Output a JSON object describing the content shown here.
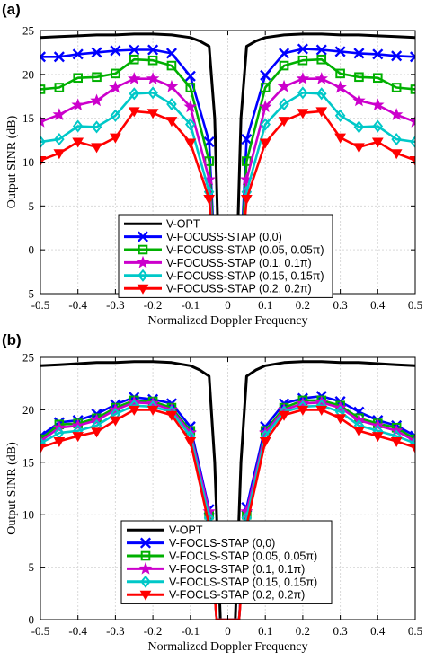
{
  "chart_data": [
    {
      "panel": "(a)",
      "type": "line",
      "xlabel": "Normalized Doppler Frequency",
      "ylabel": "Output SINR (dB)",
      "xlim": [
        -0.5,
        0.5
      ],
      "ylim": [
        -5,
        25
      ],
      "xticks": [
        "-0.5",
        "-0.4",
        "-0.3",
        "-0.2",
        "-0.1",
        "0",
        "0.1",
        "0.2",
        "0.3",
        "0.4",
        "0.5"
      ],
      "yticks": [
        "-5",
        "0",
        "5",
        "10",
        "15",
        "20",
        "25"
      ],
      "grid": true,
      "legend_position": "bottom-center",
      "series": [
        {
          "name": "V-OPT",
          "color": "#000000",
          "marker": "none",
          "x": [
            -0.5,
            -0.45,
            -0.4,
            -0.35,
            -0.3,
            -0.25,
            -0.2,
            -0.15,
            -0.1,
            -0.075,
            -0.05,
            -0.035,
            -0.025,
            -0.02,
            0.02,
            0.025,
            0.035,
            0.05,
            0.075,
            0.1,
            0.15,
            0.2,
            0.25,
            0.3,
            0.35,
            0.4,
            0.45,
            0.5
          ],
          "y": [
            24.2,
            24.3,
            24.4,
            24.5,
            24.5,
            24.6,
            24.6,
            24.5,
            24.2,
            23.8,
            23.2,
            15,
            0,
            -5,
            -5,
            0,
            15,
            23.2,
            23.8,
            24.2,
            24.5,
            24.6,
            24.6,
            24.5,
            24.5,
            24.4,
            24.3,
            24.2
          ]
        },
        {
          "name": "V-FOCUSS-STAP (0,0)",
          "color": "#0000ff",
          "marker": "x",
          "x": [
            -0.5,
            -0.45,
            -0.4,
            -0.35,
            -0.3,
            -0.25,
            -0.2,
            -0.15,
            -0.1,
            -0.05,
            -0.03,
            0.03,
            0.05,
            0.1,
            0.15,
            0.2,
            0.25,
            0.3,
            0.35,
            0.4,
            0.45,
            0.5
          ],
          "y": [
            22.0,
            22.0,
            22.3,
            22.5,
            22.7,
            22.8,
            22.8,
            22.4,
            19.8,
            12.3,
            -5,
            -5,
            12.6,
            19.9,
            22.4,
            22.9,
            22.8,
            22.6,
            22.4,
            22.3,
            22.1,
            22.0
          ]
        },
        {
          "name": "V-FOCUSS-STAP (0.05, 0.05π)",
          "color": "#00b000",
          "marker": "square",
          "x": [
            -0.5,
            -0.45,
            -0.4,
            -0.35,
            -0.3,
            -0.25,
            -0.2,
            -0.15,
            -0.1,
            -0.05,
            -0.03,
            0.03,
            0.05,
            0.1,
            0.15,
            0.2,
            0.25,
            0.3,
            0.35,
            0.4,
            0.45,
            0.5
          ],
          "y": [
            18.3,
            18.5,
            19.6,
            19.7,
            20.1,
            21.7,
            21.6,
            21.0,
            18.5,
            10.1,
            -5,
            -5,
            10.1,
            18.5,
            21.0,
            21.6,
            21.7,
            20.1,
            19.7,
            19.6,
            18.5,
            18.3
          ]
        },
        {
          "name": "V-FOCUSS-STAP (0.1, 0.1π)",
          "color": "#cc00cc",
          "marker": "star",
          "x": [
            -0.5,
            -0.45,
            -0.4,
            -0.35,
            -0.3,
            -0.25,
            -0.2,
            -0.15,
            -0.1,
            -0.05,
            -0.03,
            0.03,
            0.05,
            0.1,
            0.15,
            0.2,
            0.25,
            0.3,
            0.35,
            0.4,
            0.45,
            0.5
          ],
          "y": [
            14.6,
            15.4,
            16.5,
            17.0,
            18.5,
            19.5,
            19.5,
            18.6,
            16.3,
            8.0,
            -5,
            -5,
            8.0,
            16.3,
            18.6,
            19.5,
            19.5,
            18.5,
            17.0,
            16.5,
            15.4,
            14.6
          ]
        },
        {
          "name": "V-FOCUSS-STAP (0.15, 0.15π)",
          "color": "#00c8c8",
          "marker": "diamond",
          "x": [
            -0.5,
            -0.45,
            -0.4,
            -0.35,
            -0.3,
            -0.25,
            -0.2,
            -0.15,
            -0.1,
            -0.05,
            -0.03,
            0.03,
            0.05,
            0.1,
            0.15,
            0.2,
            0.25,
            0.3,
            0.35,
            0.4,
            0.45,
            0.5
          ],
          "y": [
            12.3,
            12.6,
            14.1,
            14.0,
            15.3,
            17.8,
            17.9,
            16.6,
            14.3,
            6.6,
            -5,
            -5,
            6.6,
            14.3,
            16.6,
            17.9,
            17.8,
            15.3,
            14.0,
            14.1,
            12.6,
            12.3
          ]
        },
        {
          "name": "V-FOCUSS-STAP (0.2, 0.2π)",
          "color": "#ff0000",
          "marker": "triangle-down",
          "x": [
            -0.5,
            -0.45,
            -0.4,
            -0.35,
            -0.3,
            -0.25,
            -0.2,
            -0.15,
            -0.1,
            -0.05,
            -0.03,
            0.03,
            0.05,
            0.1,
            0.15,
            0.2,
            0.25,
            0.3,
            0.35,
            0.4,
            0.45,
            0.5
          ],
          "y": [
            10.2,
            11.0,
            12.3,
            11.7,
            12.8,
            15.8,
            15.6,
            14.7,
            12.2,
            5.8,
            -5,
            -5,
            5.8,
            12.2,
            14.7,
            15.6,
            15.8,
            12.8,
            11.7,
            12.3,
            11.0,
            10.2
          ]
        }
      ]
    },
    {
      "panel": "(b)",
      "type": "line",
      "xlabel": "Normalized Doppler Frequency",
      "ylabel": "Output SINR (dB)",
      "xlim": [
        -0.5,
        0.5
      ],
      "ylim": [
        0,
        25
      ],
      "xticks": [
        "-0.5",
        "-0.4",
        "-0.3",
        "-0.2",
        "-0.1",
        "0",
        "0.1",
        "0.2",
        "0.3",
        "0.4",
        "0.5"
      ],
      "yticks": [
        "0",
        "5",
        "10",
        "15",
        "20",
        "25"
      ],
      "grid": true,
      "legend_position": "bottom-center",
      "series": [
        {
          "name": "V-OPT",
          "color": "#000000",
          "marker": "none",
          "x": [
            -0.5,
            -0.45,
            -0.4,
            -0.35,
            -0.3,
            -0.25,
            -0.2,
            -0.15,
            -0.1,
            -0.075,
            -0.05,
            -0.035,
            -0.025,
            -0.02,
            0.02,
            0.025,
            0.035,
            0.05,
            0.075,
            0.1,
            0.15,
            0.2,
            0.25,
            0.3,
            0.35,
            0.4,
            0.45,
            0.5
          ],
          "y": [
            24.2,
            24.3,
            24.4,
            24.5,
            24.5,
            24.6,
            24.6,
            24.5,
            24.2,
            23.8,
            23.2,
            15,
            5,
            0,
            0,
            5,
            15,
            23.2,
            23.8,
            24.2,
            24.5,
            24.6,
            24.6,
            24.5,
            24.5,
            24.4,
            24.3,
            24.2
          ]
        },
        {
          "name": "V-FOCLS-STAP (0,0)",
          "color": "#0000ff",
          "marker": "x",
          "x": [
            -0.5,
            -0.45,
            -0.4,
            -0.35,
            -0.3,
            -0.25,
            -0.2,
            -0.15,
            -0.1,
            -0.05,
            -0.03,
            0.03,
            0.05,
            0.1,
            0.15,
            0.2,
            0.25,
            0.3,
            0.35,
            0.4,
            0.45,
            0.5
          ],
          "y": [
            17.5,
            18.8,
            19.0,
            19.6,
            20.5,
            21.2,
            21.0,
            20.6,
            18.4,
            10.5,
            0,
            0,
            10.7,
            18.4,
            20.6,
            21.1,
            21.3,
            20.8,
            19.8,
            19.0,
            18.5,
            17.5
          ]
        },
        {
          "name": "V-FOCLS-STAP (0.05, 0.05π)",
          "color": "#00b000",
          "marker": "square",
          "x": [
            -0.5,
            -0.45,
            -0.4,
            -0.35,
            -0.3,
            -0.25,
            -0.2,
            -0.15,
            -0.1,
            -0.05,
            -0.03,
            0.03,
            0.05,
            0.1,
            0.15,
            0.2,
            0.25,
            0.3,
            0.35,
            0.4,
            0.45,
            0.5
          ],
          "y": [
            17.2,
            18.6,
            18.7,
            19.2,
            20.2,
            20.9,
            20.8,
            20.2,
            18.0,
            10.0,
            0,
            0,
            10.0,
            18.0,
            20.2,
            20.9,
            20.9,
            20.4,
            19.2,
            18.7,
            18.3,
            17.2
          ]
        },
        {
          "name": "V-FOCLS-STAP (0.1, 0.1π)",
          "color": "#cc00cc",
          "marker": "star",
          "x": [
            -0.5,
            -0.45,
            -0.4,
            -0.35,
            -0.3,
            -0.25,
            -0.2,
            -0.15,
            -0.1,
            -0.05,
            -0.03,
            0.03,
            0.05,
            0.1,
            0.15,
            0.2,
            0.25,
            0.3,
            0.35,
            0.4,
            0.45,
            0.5
          ],
          "y": [
            17.0,
            18.3,
            18.5,
            19.0,
            20.0,
            20.7,
            20.6,
            20.0,
            17.8,
            10.3,
            0,
            0,
            10.3,
            17.8,
            20.0,
            20.6,
            20.7,
            20.2,
            19.0,
            18.5,
            18.0,
            17.0
          ]
        },
        {
          "name": "V-FOCLS-STAP (0.15, 0.15π)",
          "color": "#00c8c8",
          "marker": "diamond",
          "x": [
            -0.5,
            -0.45,
            -0.4,
            -0.35,
            -0.3,
            -0.25,
            -0.2,
            -0.15,
            -0.1,
            -0.05,
            -0.03,
            0.03,
            0.05,
            0.1,
            0.15,
            0.2,
            0.25,
            0.3,
            0.35,
            0.4,
            0.45,
            0.5
          ],
          "y": [
            16.8,
            17.8,
            18.0,
            18.5,
            19.6,
            20.4,
            20.3,
            19.8,
            17.5,
            9.7,
            0,
            0,
            9.7,
            17.5,
            19.8,
            20.3,
            20.4,
            19.8,
            18.5,
            18.0,
            17.5,
            16.8
          ]
        },
        {
          "name": "V-FOCLS-STAP (0.2, 0.2π)",
          "color": "#ff0000",
          "marker": "triangle-down",
          "x": [
            -0.5,
            -0.45,
            -0.4,
            -0.35,
            -0.3,
            -0.25,
            -0.2,
            -0.15,
            -0.1,
            -0.05,
            -0.03,
            0.03,
            0.05,
            0.1,
            0.15,
            0.2,
            0.25,
            0.3,
            0.35,
            0.4,
            0.45,
            0.5
          ],
          "y": [
            16.4,
            17.0,
            17.5,
            17.9,
            19.0,
            20.0,
            20.0,
            19.5,
            17.0,
            9.0,
            0,
            0,
            9.0,
            17.0,
            19.5,
            20.0,
            20.0,
            19.2,
            18.0,
            17.5,
            17.0,
            16.4
          ]
        }
      ]
    }
  ]
}
